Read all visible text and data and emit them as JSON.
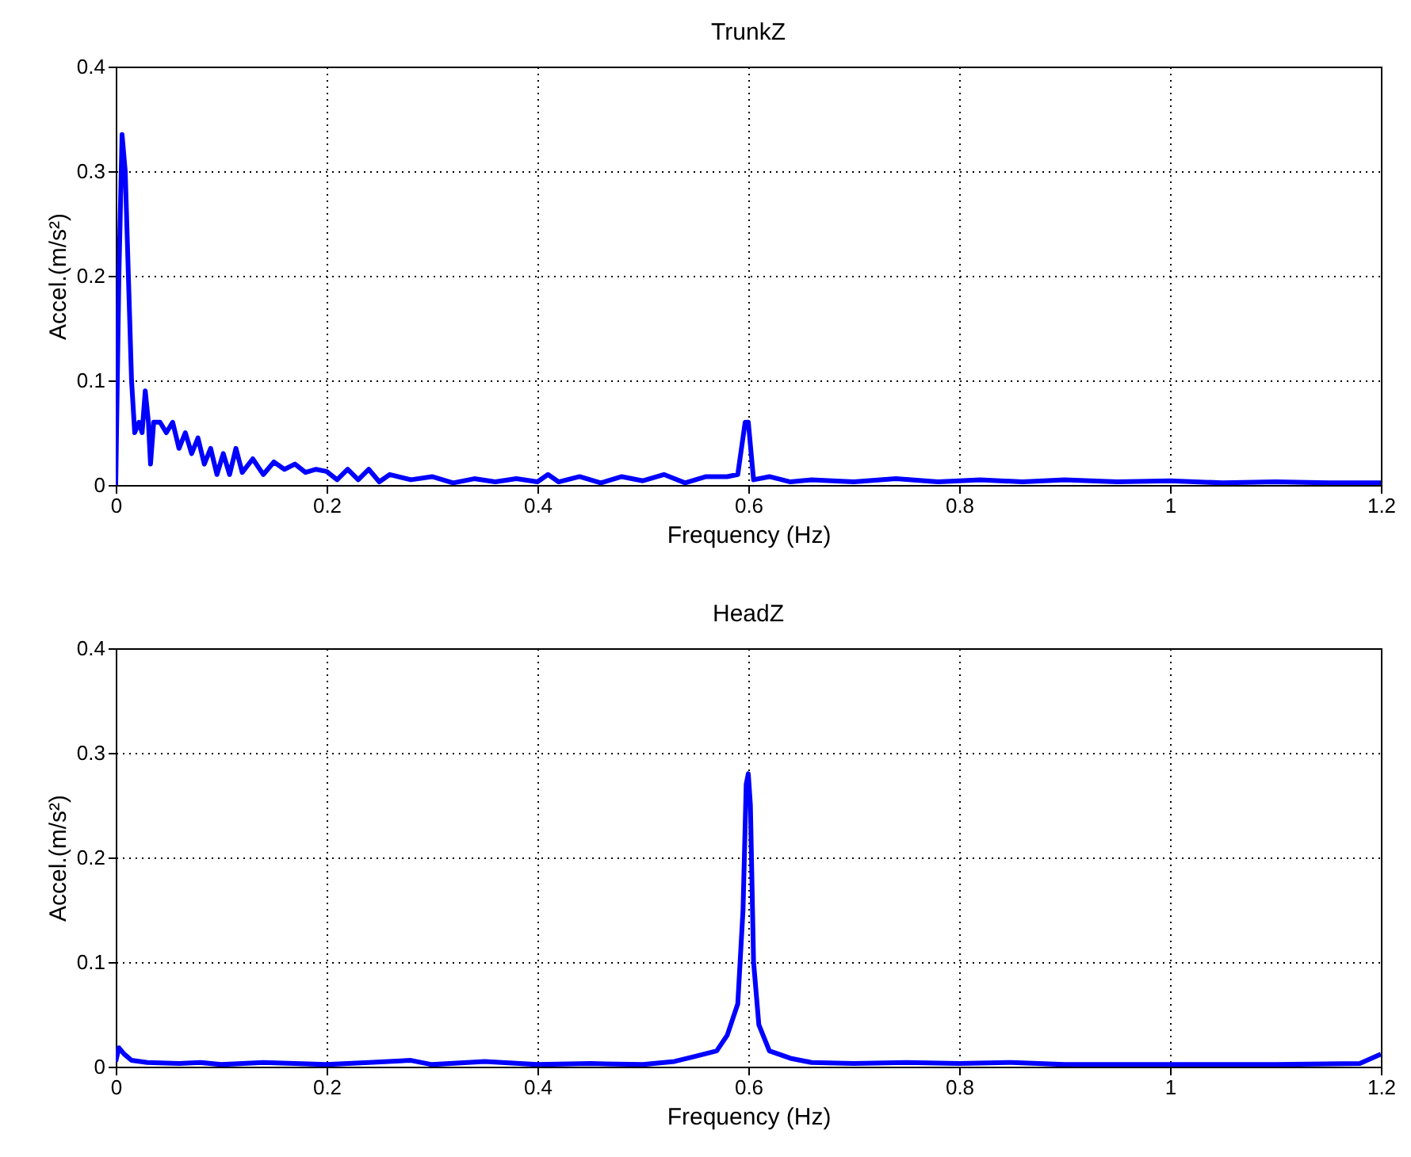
{
  "chart_data": [
    {
      "type": "line",
      "title": "TrunkZ",
      "xlabel": "Frequency (Hz)",
      "ylabel": "Accel.(m/s²)",
      "xlim": [
        0,
        1.2
      ],
      "ylim": [
        0,
        0.4
      ],
      "xticks": [
        0,
        0.2,
        0.4,
        0.6,
        0.8,
        1,
        1.2
      ],
      "yticks": [
        0,
        0.1,
        0.2,
        0.3,
        0.4
      ],
      "grid": true,
      "line_style": "solid",
      "series": [
        {
          "color": "#0000ff",
          "x": [
            0,
            0.003,
            0.006,
            0.009,
            0.012,
            0.015,
            0.018,
            0.022,
            0.025,
            0.028,
            0.031,
            0.033,
            0.036,
            0.042,
            0.048,
            0.054,
            0.06,
            0.066,
            0.072,
            0.078,
            0.084,
            0.09,
            0.096,
            0.102,
            0.108,
            0.114,
            0.12,
            0.13,
            0.14,
            0.15,
            0.16,
            0.17,
            0.18,
            0.19,
            0.2,
            0.21,
            0.22,
            0.23,
            0.24,
            0.25,
            0.26,
            0.28,
            0.3,
            0.32,
            0.34,
            0.36,
            0.38,
            0.4,
            0.41,
            0.42,
            0.44,
            0.46,
            0.48,
            0.5,
            0.52,
            0.54,
            0.56,
            0.58,
            0.59,
            0.597,
            0.6,
            0.605,
            0.62,
            0.64,
            0.66,
            0.7,
            0.74,
            0.78,
            0.82,
            0.86,
            0.9,
            0.95,
            1.0,
            1.05,
            1.1,
            1.15,
            1.2
          ],
          "values": [
            0,
            0.2,
            0.335,
            0.3,
            0.2,
            0.1,
            0.05,
            0.06,
            0.05,
            0.09,
            0.06,
            0.02,
            0.06,
            0.06,
            0.05,
            0.06,
            0.035,
            0.05,
            0.03,
            0.045,
            0.02,
            0.035,
            0.01,
            0.03,
            0.01,
            0.035,
            0.012,
            0.025,
            0.01,
            0.022,
            0.015,
            0.02,
            0.012,
            0.015,
            0.013,
            0.005,
            0.015,
            0.005,
            0.015,
            0.003,
            0.01,
            0.005,
            0.008,
            0.002,
            0.006,
            0.003,
            0.006,
            0.003,
            0.01,
            0.003,
            0.008,
            0.002,
            0.008,
            0.004,
            0.01,
            0.002,
            0.008,
            0.008,
            0.01,
            0.06,
            0.06,
            0.005,
            0.008,
            0.003,
            0.005,
            0.003,
            0.006,
            0.003,
            0.005,
            0.003,
            0.005,
            0.003,
            0.004,
            0.002,
            0.003,
            0.002,
            0.002
          ]
        }
      ]
    },
    {
      "type": "line",
      "title": "HeadZ",
      "xlabel": "Frequency (Hz)",
      "ylabel": "Accel.(m/s²)",
      "xlim": [
        0,
        1.2
      ],
      "ylim": [
        0,
        0.4
      ],
      "xticks": [
        0,
        0.2,
        0.4,
        0.6,
        0.8,
        1,
        1.2
      ],
      "yticks": [
        0,
        0.1,
        0.2,
        0.3,
        0.4
      ],
      "grid": true,
      "line_style": "solid",
      "series": [
        {
          "color": "#0000ff",
          "x": [
            0,
            0.003,
            0.008,
            0.015,
            0.03,
            0.06,
            0.08,
            0.1,
            0.14,
            0.2,
            0.24,
            0.28,
            0.3,
            0.35,
            0.4,
            0.45,
            0.5,
            0.53,
            0.55,
            0.57,
            0.58,
            0.59,
            0.595,
            0.598,
            0.6,
            0.602,
            0.605,
            0.61,
            0.62,
            0.64,
            0.66,
            0.7,
            0.75,
            0.8,
            0.85,
            0.9,
            1.0,
            1.1,
            1.18,
            1.2
          ],
          "values": [
            0.005,
            0.018,
            0.012,
            0.006,
            0.004,
            0.003,
            0.004,
            0.002,
            0.004,
            0.002,
            0.004,
            0.006,
            0.002,
            0.005,
            0.002,
            0.003,
            0.002,
            0.005,
            0.01,
            0.015,
            0.03,
            0.06,
            0.15,
            0.27,
            0.28,
            0.25,
            0.1,
            0.04,
            0.015,
            0.008,
            0.004,
            0.003,
            0.004,
            0.003,
            0.004,
            0.002,
            0.002,
            0.002,
            0.003,
            0.012
          ]
        }
      ]
    }
  ]
}
